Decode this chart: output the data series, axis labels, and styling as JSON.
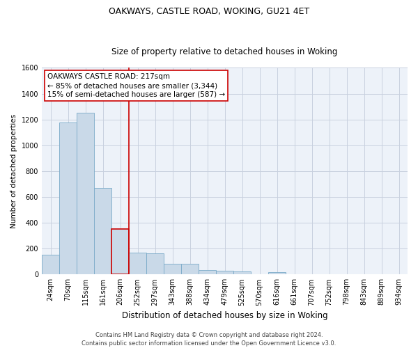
{
  "title": "OAKWAYS, CASTLE ROAD, WOKING, GU21 4ET",
  "subtitle": "Size of property relative to detached houses in Woking",
  "xlabel": "Distribution of detached houses by size in Woking",
  "ylabel": "Number of detached properties",
  "categories": [
    "24sqm",
    "70sqm",
    "115sqm",
    "161sqm",
    "206sqm",
    "252sqm",
    "297sqm",
    "343sqm",
    "388sqm",
    "434sqm",
    "479sqm",
    "525sqm",
    "570sqm",
    "616sqm",
    "661sqm",
    "707sqm",
    "752sqm",
    "798sqm",
    "843sqm",
    "889sqm",
    "934sqm"
  ],
  "values": [
    150,
    1175,
    1250,
    670,
    350,
    170,
    165,
    80,
    80,
    32,
    28,
    22,
    0,
    18,
    0,
    0,
    0,
    0,
    0,
    0,
    0
  ],
  "bar_color": "#c9d9e8",
  "bar_edge_color": "#7aaac8",
  "highlight_index": 4,
  "highlight_color": "#cc0000",
  "ylim": [
    0,
    1600
  ],
  "yticks": [
    0,
    200,
    400,
    600,
    800,
    1000,
    1200,
    1400,
    1600
  ],
  "annotation_box_text": "OAKWAYS CASTLE ROAD: 217sqm\n← 85% of detached houses are smaller (3,344)\n15% of semi-detached houses are larger (587) →",
  "footer_line1": "Contains HM Land Registry data © Crown copyright and database right 2024.",
  "footer_line2": "Contains public sector information licensed under the Open Government Licence v3.0.",
  "background_color": "#edf2f9",
  "grid_color": "#c8d0df",
  "title_fontsize": 9,
  "subtitle_fontsize": 8.5,
  "xlabel_fontsize": 8.5,
  "ylabel_fontsize": 7.5,
  "tick_fontsize": 7,
  "footer_fontsize": 6,
  "ann_fontsize": 7.5
}
